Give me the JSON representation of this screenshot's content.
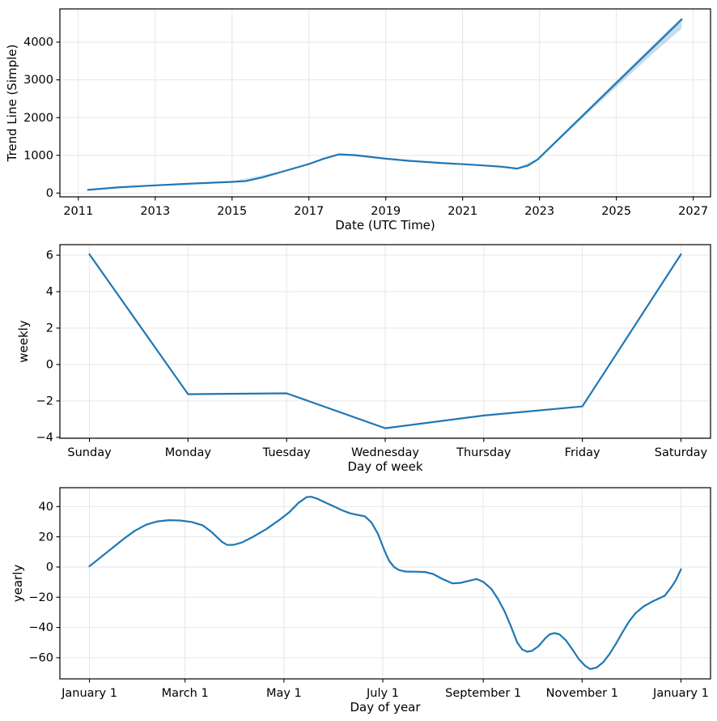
{
  "figure": {
    "background": "#ffffff",
    "line_color": "#1f77b4",
    "band_color": "#1f77b4",
    "grid_color": "#e6e6e6",
    "spine_color": "#000000",
    "text_color": "#000000"
  },
  "chart_data": [
    {
      "type": "line",
      "name": "trend",
      "title": "",
      "xlabel": "Date (UTC Time)",
      "ylabel": "Trend Line (Simple)",
      "xlim": [
        2010.52,
        2027.45
      ],
      "ylim": [
        -100,
        4880
      ],
      "grid": true,
      "legend": false,
      "x_ticks": {
        "values": [
          2011,
          2013,
          2015,
          2017,
          2019,
          2021,
          2023,
          2025,
          2027
        ],
        "labels": [
          "2011",
          "2013",
          "2015",
          "2017",
          "2019",
          "2021",
          "2023",
          "2025",
          "2027"
        ]
      },
      "y_ticks": {
        "values": [
          0,
          1000,
          2000,
          3000,
          4000
        ],
        "labels": [
          "0",
          "1000",
          "2000",
          "3000",
          "4000"
        ]
      },
      "series": [
        {
          "name": "trend",
          "x": [
            2011.25,
            2012,
            2013,
            2014,
            2015,
            2015.35,
            2015.8,
            2016.3,
            2017,
            2017.4,
            2017.78,
            2018.2,
            2019,
            2019.6,
            2020.4,
            2021.2,
            2022,
            2022.42,
            2022.7,
            2022.95,
            2024,
            2025,
            2026,
            2026.7
          ],
          "y": [
            85,
            148,
            205,
            255,
            298,
            318,
            420,
            565,
            770,
            915,
            1025,
            1005,
            910,
            855,
            800,
            755,
            700,
            650,
            730,
            890,
            1930,
            2920,
            3905,
            4600
          ]
        }
      ],
      "band": {
        "x": [
          2011.25,
          2013,
          2015,
          2016.3,
          2017.78,
          2019,
          2021.2,
          2022.42,
          2022.95,
          2024,
          2025,
          2026,
          2026.7
        ],
        "lo": [
          75,
          195,
          288,
          552,
          1010,
          895,
          740,
          635,
          870,
          1870,
          2815,
          3740,
          4360
        ],
        "hi": [
          95,
          215,
          308,
          578,
          1040,
          925,
          770,
          665,
          910,
          1965,
          2975,
          3975,
          4665
        ]
      }
    },
    {
      "type": "line",
      "name": "weekly",
      "title": "",
      "xlabel": "Day of week",
      "ylabel": "weekly",
      "xlim": [
        -0.3,
        6.3
      ],
      "ylim": [
        -4.05,
        6.58
      ],
      "grid": true,
      "legend": false,
      "x_ticks": {
        "values": [
          0,
          1,
          2,
          3,
          4,
          5,
          6
        ],
        "labels": [
          "Sunday",
          "Monday",
          "Tuesday",
          "Wednesday",
          "Thursday",
          "Friday",
          "Saturday"
        ]
      },
      "y_ticks": {
        "values": [
          -4,
          -2,
          0,
          2,
          4,
          6
        ],
        "labels": [
          "−4",
          "−2",
          "0",
          "2",
          "4",
          "6"
        ]
      },
      "series": [
        {
          "name": "weekly",
          "x": [
            0,
            1,
            2,
            3,
            4,
            5,
            6
          ],
          "y": [
            6.05,
            -1.63,
            -1.58,
            -3.5,
            -2.8,
            -2.3,
            6.05
          ]
        }
      ]
    },
    {
      "type": "line",
      "name": "yearly",
      "title": "",
      "xlabel": "Day of year",
      "ylabel": "yearly",
      "xlim": [
        -17.25,
        384.25
      ],
      "ylim": [
        -74,
        52.5
      ],
      "grid": true,
      "legend": false,
      "x_ticks": {
        "values": [
          1,
          60,
          121,
          182,
          244,
          305,
          366
        ],
        "labels": [
          "January 1",
          "March 1",
          "May 1",
          "July 1",
          "September 1",
          "November 1",
          "January 1"
        ]
      },
      "y_ticks": {
        "values": [
          -60,
          -40,
          -20,
          0,
          20,
          40
        ],
        "labels": [
          "−60",
          "−40",
          "−20",
          "0",
          "20",
          "40"
        ]
      },
      "series": [
        {
          "name": "yearly",
          "x": [
            1,
            8,
            15,
            22,
            29,
            36,
            43,
            50,
            57,
            64,
            71,
            76,
            80,
            83,
            86,
            90,
            95,
            102,
            110,
            118,
            124,
            130,
            135,
            138,
            142,
            147,
            152,
            157,
            162,
            167,
            171,
            175,
            179,
            183,
            186,
            189,
            192,
            196,
            202,
            208,
            213,
            219,
            225,
            230,
            235,
            240,
            244,
            249,
            253,
            257,
            261,
            265,
            268,
            271,
            274,
            278,
            282,
            285,
            288,
            291,
            295,
            299,
            303,
            307,
            310,
            314,
            318,
            322,
            326,
            330,
            334,
            338,
            343,
            348,
            352,
            356,
            360,
            363,
            366
          ],
          "y": [
            0.5,
            6.5,
            12.5,
            18.5,
            24,
            28,
            30.2,
            31,
            30.8,
            29.8,
            27.5,
            23.5,
            19.5,
            16.5,
            14.6,
            14.7,
            16.2,
            20,
            25,
            31,
            36,
            42.5,
            46.3,
            46.5,
            45,
            42.5,
            40,
            37.5,
            35.5,
            34.4,
            33.5,
            29.5,
            22,
            11,
            4,
            0,
            -2,
            -3,
            -3.1,
            -3.3,
            -4.6,
            -8,
            -10.8,
            -10.5,
            -9.2,
            -7.9,
            -9.8,
            -14.5,
            -21,
            -29,
            -39,
            -50,
            -54.5,
            -56,
            -55.5,
            -52.5,
            -47.5,
            -44.5,
            -43.7,
            -44.5,
            -48.5,
            -54.5,
            -61,
            -65.5,
            -67.5,
            -66.5,
            -63,
            -57.5,
            -50.5,
            -43,
            -36,
            -30.5,
            -26,
            -23,
            -21,
            -19,
            -13.5,
            -8.5,
            -1.5
          ]
        }
      ]
    }
  ]
}
